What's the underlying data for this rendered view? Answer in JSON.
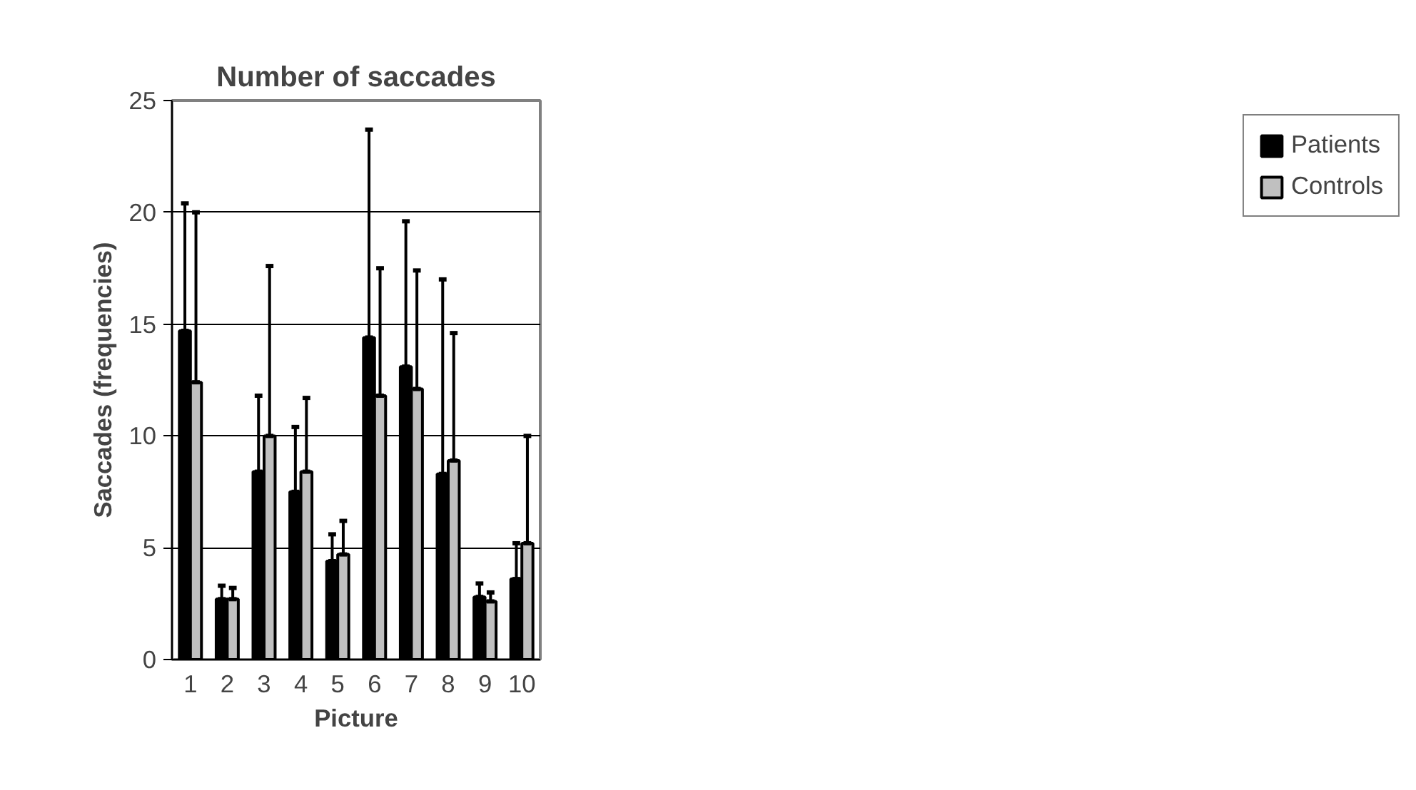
{
  "chart_data": {
    "type": "bar",
    "title": "Number of saccades",
    "xlabel": "Picture",
    "ylabel": "Saccades (frequencies)",
    "categories": [
      "1",
      "2",
      "3",
      "4",
      "5",
      "6",
      "7",
      "8",
      "9",
      "10"
    ],
    "series": [
      {
        "name": "Patients",
        "color": "#000000",
        "values": [
          14.7,
          2.7,
          8.4,
          7.5,
          4.4,
          14.4,
          13.1,
          8.3,
          2.8,
          3.6
        ],
        "errors": [
          [
            14.7,
            20.4
          ],
          [
            2.7,
            3.3
          ],
          [
            8.4,
            11.8
          ],
          [
            7.5,
            10.4
          ],
          [
            4.4,
            5.6
          ],
          [
            14.4,
            23.7
          ],
          [
            13.1,
            19.6
          ],
          [
            8.3,
            17.0
          ],
          [
            2.8,
            3.4
          ],
          [
            3.6,
            5.2
          ]
        ]
      },
      {
        "name": "Controls",
        "color": "#c0c0c0",
        "values": [
          12.4,
          2.7,
          10.0,
          8.4,
          4.7,
          11.8,
          12.1,
          8.9,
          2.6,
          5.2
        ],
        "errors": [
          [
            12.4,
            20.0
          ],
          [
            2.7,
            3.2
          ],
          [
            10.0,
            17.6
          ],
          [
            8.4,
            11.7
          ],
          [
            4.7,
            6.2
          ],
          [
            11.8,
            17.5
          ],
          [
            12.1,
            17.4
          ],
          [
            8.9,
            14.6
          ],
          [
            2.6,
            3.0
          ],
          [
            5.2,
            10.0
          ]
        ]
      }
    ],
    "ylim": [
      0,
      25
    ],
    "yticks": [
      0,
      5,
      10,
      15,
      20,
      25
    ],
    "grid": "y",
    "legend": "right"
  }
}
